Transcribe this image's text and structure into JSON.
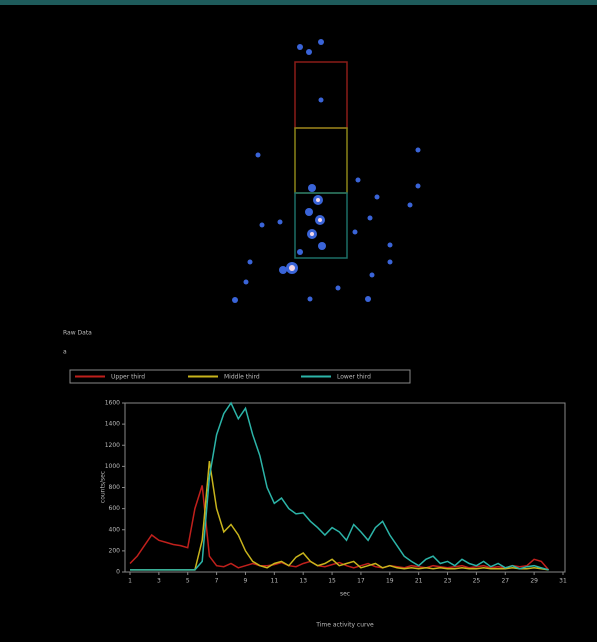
{
  "image_panel": {
    "label": "Raw Data",
    "sublabel": "a"
  },
  "chart_data": {
    "type": "line",
    "title": "Time activity curve",
    "x_label": "sec",
    "y_label": "counts/sec",
    "x": [
      1,
      1.5,
      2,
      2.5,
      3,
      3.5,
      4,
      4.5,
      5,
      5.5,
      6,
      6.5,
      7,
      7.5,
      8,
      8.5,
      9,
      9.5,
      10,
      10.5,
      11,
      11.5,
      12,
      12.5,
      13,
      13.5,
      14,
      14.5,
      15,
      15.5,
      16,
      16.5,
      17,
      17.5,
      18,
      18.5,
      19,
      19.5,
      20,
      20.5,
      21,
      21.5,
      22,
      22.5,
      23,
      23.5,
      24,
      24.5,
      25,
      25.5,
      26,
      26.5,
      27,
      27.5,
      28,
      28.5,
      29,
      29.5,
      30
    ],
    "series": [
      {
        "name": "Upper third",
        "color": "#c0201c",
        "values": [
          80,
          150,
          250,
          350,
          300,
          280,
          260,
          250,
          230,
          600,
          820,
          150,
          60,
          50,
          80,
          40,
          60,
          80,
          60,
          60,
          70,
          90,
          60,
          50,
          80,
          100,
          60,
          50,
          70,
          90,
          60,
          40,
          60,
          80,
          50,
          40,
          60,
          50,
          40,
          60,
          50,
          40,
          60,
          50,
          40,
          50,
          60,
          40,
          50,
          60,
          40,
          50,
          40,
          60,
          50,
          60,
          120,
          100,
          20
        ]
      },
      {
        "name": "Middle third",
        "color": "#c8b41c",
        "values": [
          20,
          20,
          20,
          20,
          20,
          20,
          20,
          20,
          20,
          20,
          300,
          1050,
          600,
          380,
          450,
          350,
          200,
          100,
          60,
          40,
          80,
          100,
          60,
          140,
          180,
          100,
          60,
          80,
          120,
          60,
          80,
          100,
          40,
          60,
          80,
          40,
          60,
          40,
          30,
          40,
          30,
          40,
          30,
          40,
          30,
          30,
          40,
          30,
          30,
          40,
          30,
          30,
          30,
          40,
          30,
          30,
          40,
          30,
          20
        ]
      },
      {
        "name": "Lower third",
        "color": "#2cb4a8",
        "values": [
          20,
          20,
          20,
          20,
          20,
          20,
          20,
          20,
          20,
          20,
          100,
          900,
          1300,
          1500,
          1600,
          1450,
          1550,
          1300,
          1100,
          800,
          650,
          700,
          600,
          550,
          560,
          480,
          420,
          350,
          420,
          380,
          300,
          450,
          380,
          300,
          420,
          480,
          350,
          250,
          150,
          100,
          60,
          120,
          150,
          80,
          100,
          60,
          120,
          80,
          60,
          100,
          50,
          80,
          40,
          60,
          30,
          50,
          60,
          40,
          20
        ]
      }
    ],
    "xlim": [
      1,
      31
    ],
    "xticks": [
      1,
      3,
      5,
      7,
      9,
      11,
      13,
      15,
      17,
      19,
      21,
      23,
      25,
      27,
      29,
      31
    ],
    "ylim": [
      0,
      1600
    ],
    "yticks": [
      0,
      200,
      400,
      600,
      800,
      1000,
      1200,
      1400,
      1600
    ]
  }
}
